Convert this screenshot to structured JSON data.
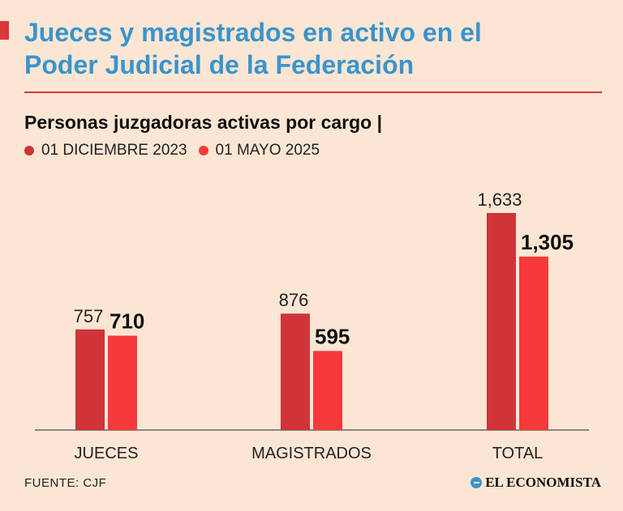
{
  "header": {
    "title_line1": "Jueces y magistrados en activo en el",
    "title_line2": "Poder Judicial de la Federación"
  },
  "subtitle": "Personas juzgadoras activas por cargo |",
  "legend": [
    {
      "label": "01 DICIEMBRE 2023",
      "color": "#cf3439"
    },
    {
      "label": "01 MAYO 2025",
      "color": "#f6393b"
    }
  ],
  "chart_data": {
    "type": "bar",
    "categories": [
      "JUECES",
      "MAGISTRADOS",
      "TOTAL"
    ],
    "series": [
      {
        "name": "01 DICIEMBRE 2023",
        "values": [
          757,
          876,
          1633
        ],
        "labels": [
          "757",
          "876",
          "1,633"
        ],
        "color": "#cf3439"
      },
      {
        "name": "01 MAYO 2025",
        "values": [
          710,
          595,
          1305
        ],
        "labels": [
          "710",
          "595",
          "1,305"
        ],
        "color": "#f6393b"
      }
    ],
    "ylim": [
      0,
      1633
    ],
    "grid": false,
    "legend_position": "top-left"
  },
  "footer": {
    "source": "FUENTE: CJF",
    "brand": "EL ECONOMISTA"
  }
}
